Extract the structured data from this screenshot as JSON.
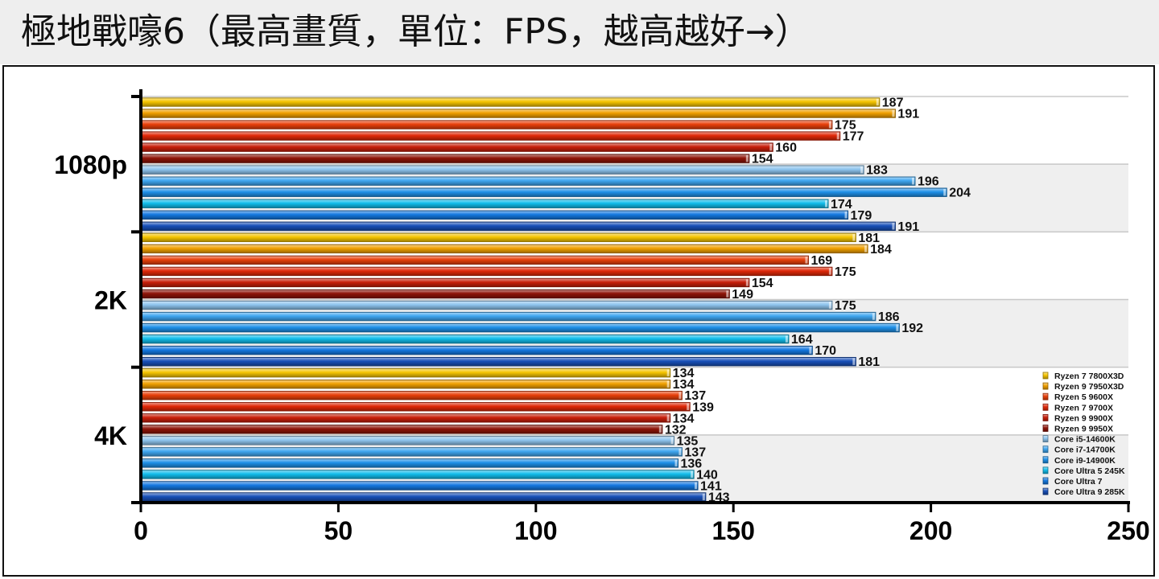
{
  "title": "極地戰嚎6（最高畫質，單位：FPS，越高越好→）",
  "chart_data": {
    "type": "bar",
    "orientation": "horizontal",
    "title": "極地戰嚎6（最高畫質，單位：FPS，越高越好→）",
    "xlabel": "",
    "ylabel": "",
    "xlim": [
      0,
      250
    ],
    "x_ticks": [
      "0",
      "50",
      "100",
      "150",
      "200",
      "250"
    ],
    "grid": "horizontal bands",
    "legend_position": "bottom-right",
    "categories": [
      "1080p",
      "2K",
      "4K"
    ],
    "series": [
      {
        "name": "Ryzen 7 7800X3D",
        "color": "#F5C400",
        "values": [
          187,
          181,
          134
        ]
      },
      {
        "name": "Ryzen 9 7950X3D",
        "color": "#F0A000",
        "values": [
          191,
          184,
          134
        ]
      },
      {
        "name": "Ryzen 5 9600X",
        "color": "#E8400A",
        "values": [
          175,
          169,
          137
        ]
      },
      {
        "name": "Ryzen 7 9700X",
        "color": "#E02808",
        "values": [
          177,
          175,
          139
        ]
      },
      {
        "name": "Ryzen 9 9900X",
        "color": "#C81E0A",
        "values": [
          160,
          154,
          134
        ]
      },
      {
        "name": "Ryzen 9 9950X",
        "color": "#8E1408",
        "values": [
          154,
          149,
          132
        ]
      },
      {
        "name": "Core i5-14600K",
        "color": "#8EC4EE",
        "values": [
          183,
          175,
          135
        ]
      },
      {
        "name": "Core i7-14700K",
        "color": "#3FA6F0",
        "values": [
          196,
          186,
          137
        ]
      },
      {
        "name": "Core i9-14900K",
        "color": "#1E90E8",
        "values": [
          204,
          192,
          136
        ]
      },
      {
        "name": "Core Ultra 5 245K",
        "color": "#12BDEB",
        "values": [
          174,
          164,
          140
        ]
      },
      {
        "name": "Core Ultra 7",
        "color": "#1478E0",
        "values": [
          179,
          170,
          141
        ]
      },
      {
        "name": "Core Ultra 9 285K",
        "color": "#1850B8",
        "values": [
          191,
          181,
          143
        ]
      }
    ]
  }
}
